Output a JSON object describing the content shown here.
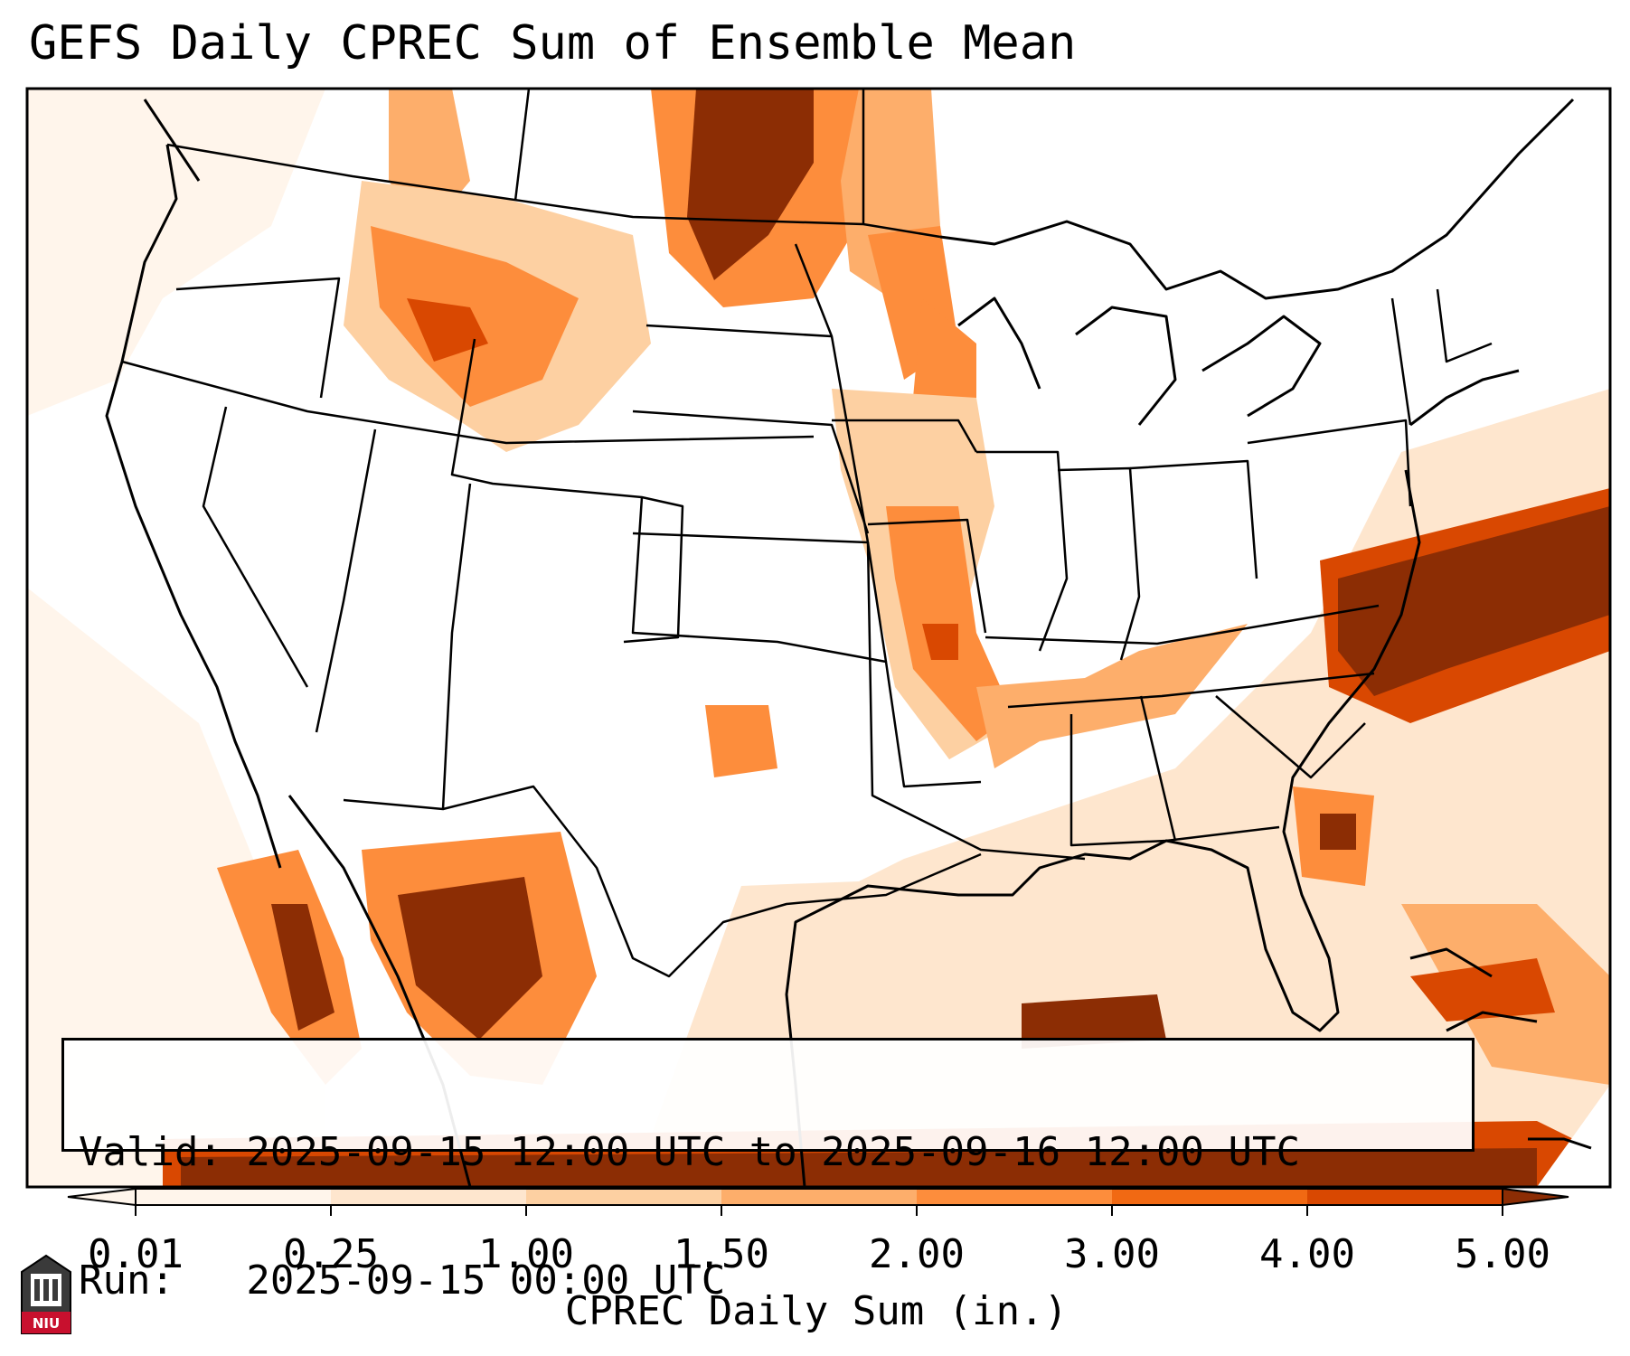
{
  "title": "GEFS Daily CPREC Sum of Ensemble Mean",
  "info": {
    "valid": "Valid: 2025-09-15 12:00 UTC to 2025-09-16 12:00 UTC",
    "run": "Run:   2025-09-15 00:00 UTC"
  },
  "colorbar": {
    "label": "CPREC Daily Sum (in.)",
    "ticks": [
      "0.01",
      "0.25",
      "1.00",
      "1.50",
      "2.00",
      "3.00",
      "4.00",
      "5.00"
    ],
    "colors": [
      "#fff5eb",
      "#fee6ce",
      "#fdd0a2",
      "#fdae6b",
      "#fd8d3c",
      "#f16913",
      "#d94801",
      "#8c2d04"
    ]
  },
  "logo": {
    "text": "NIU",
    "color": "#c8102e"
  },
  "map": {
    "projection": "lambert-conformal",
    "region": "CONUS"
  }
}
